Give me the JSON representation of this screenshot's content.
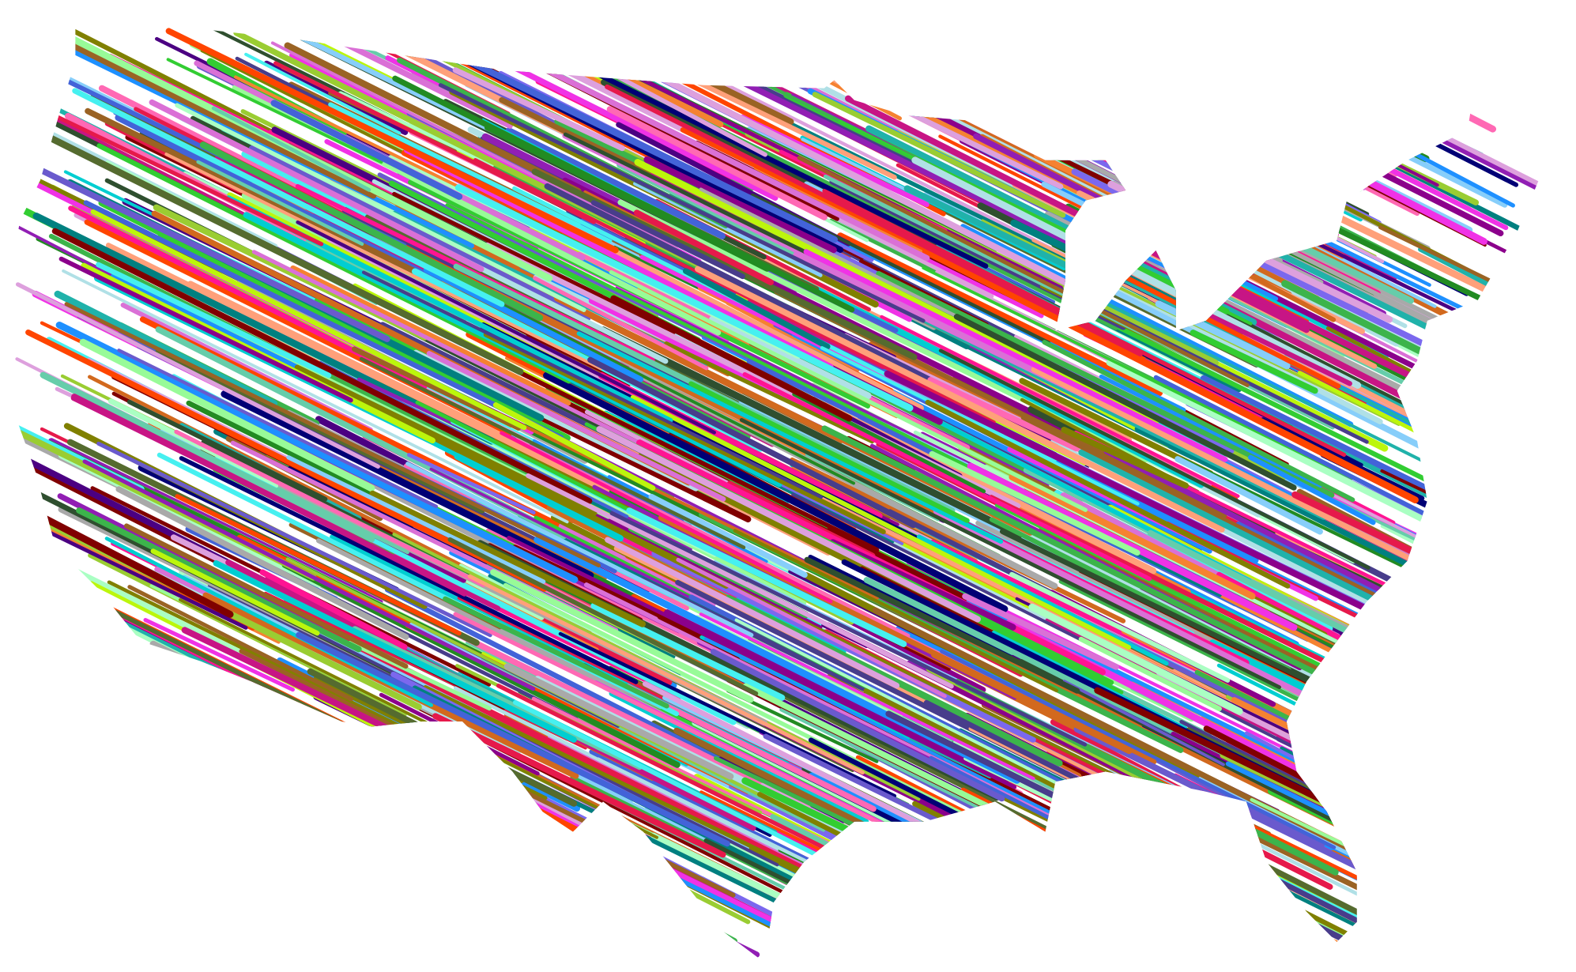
{
  "artwork": {
    "subject": "map-silhouette",
    "style": "scribble",
    "background": "#ffffff",
    "palette": [
      "#e6194b",
      "#3cb44b",
      "#4363d8",
      "#f58231",
      "#911eb4",
      "#46f0f0",
      "#f032e6",
      "#bcf60c",
      "#008080",
      "#9a6324",
      "#800000",
      "#aaffc3",
      "#808000",
      "#000075",
      "#a9a9a9",
      "#2f4f2f",
      "#7b68ee",
      "#ff69b4",
      "#20b2aa",
      "#da70d6",
      "#32cd32",
      "#1e90ff",
      "#8b008b",
      "#ffa07a",
      "#9acd32",
      "#6a5acd",
      "#00ced1",
      "#ff1493",
      "#556b2f",
      "#b0e0e6",
      "#c71585",
      "#66cdaa",
      "#d2691e",
      "#4b0082",
      "#98fb98",
      "#ff4500",
      "#87cefa",
      "#dda0dd",
      "#228b22",
      "#483d8b"
    ]
  }
}
